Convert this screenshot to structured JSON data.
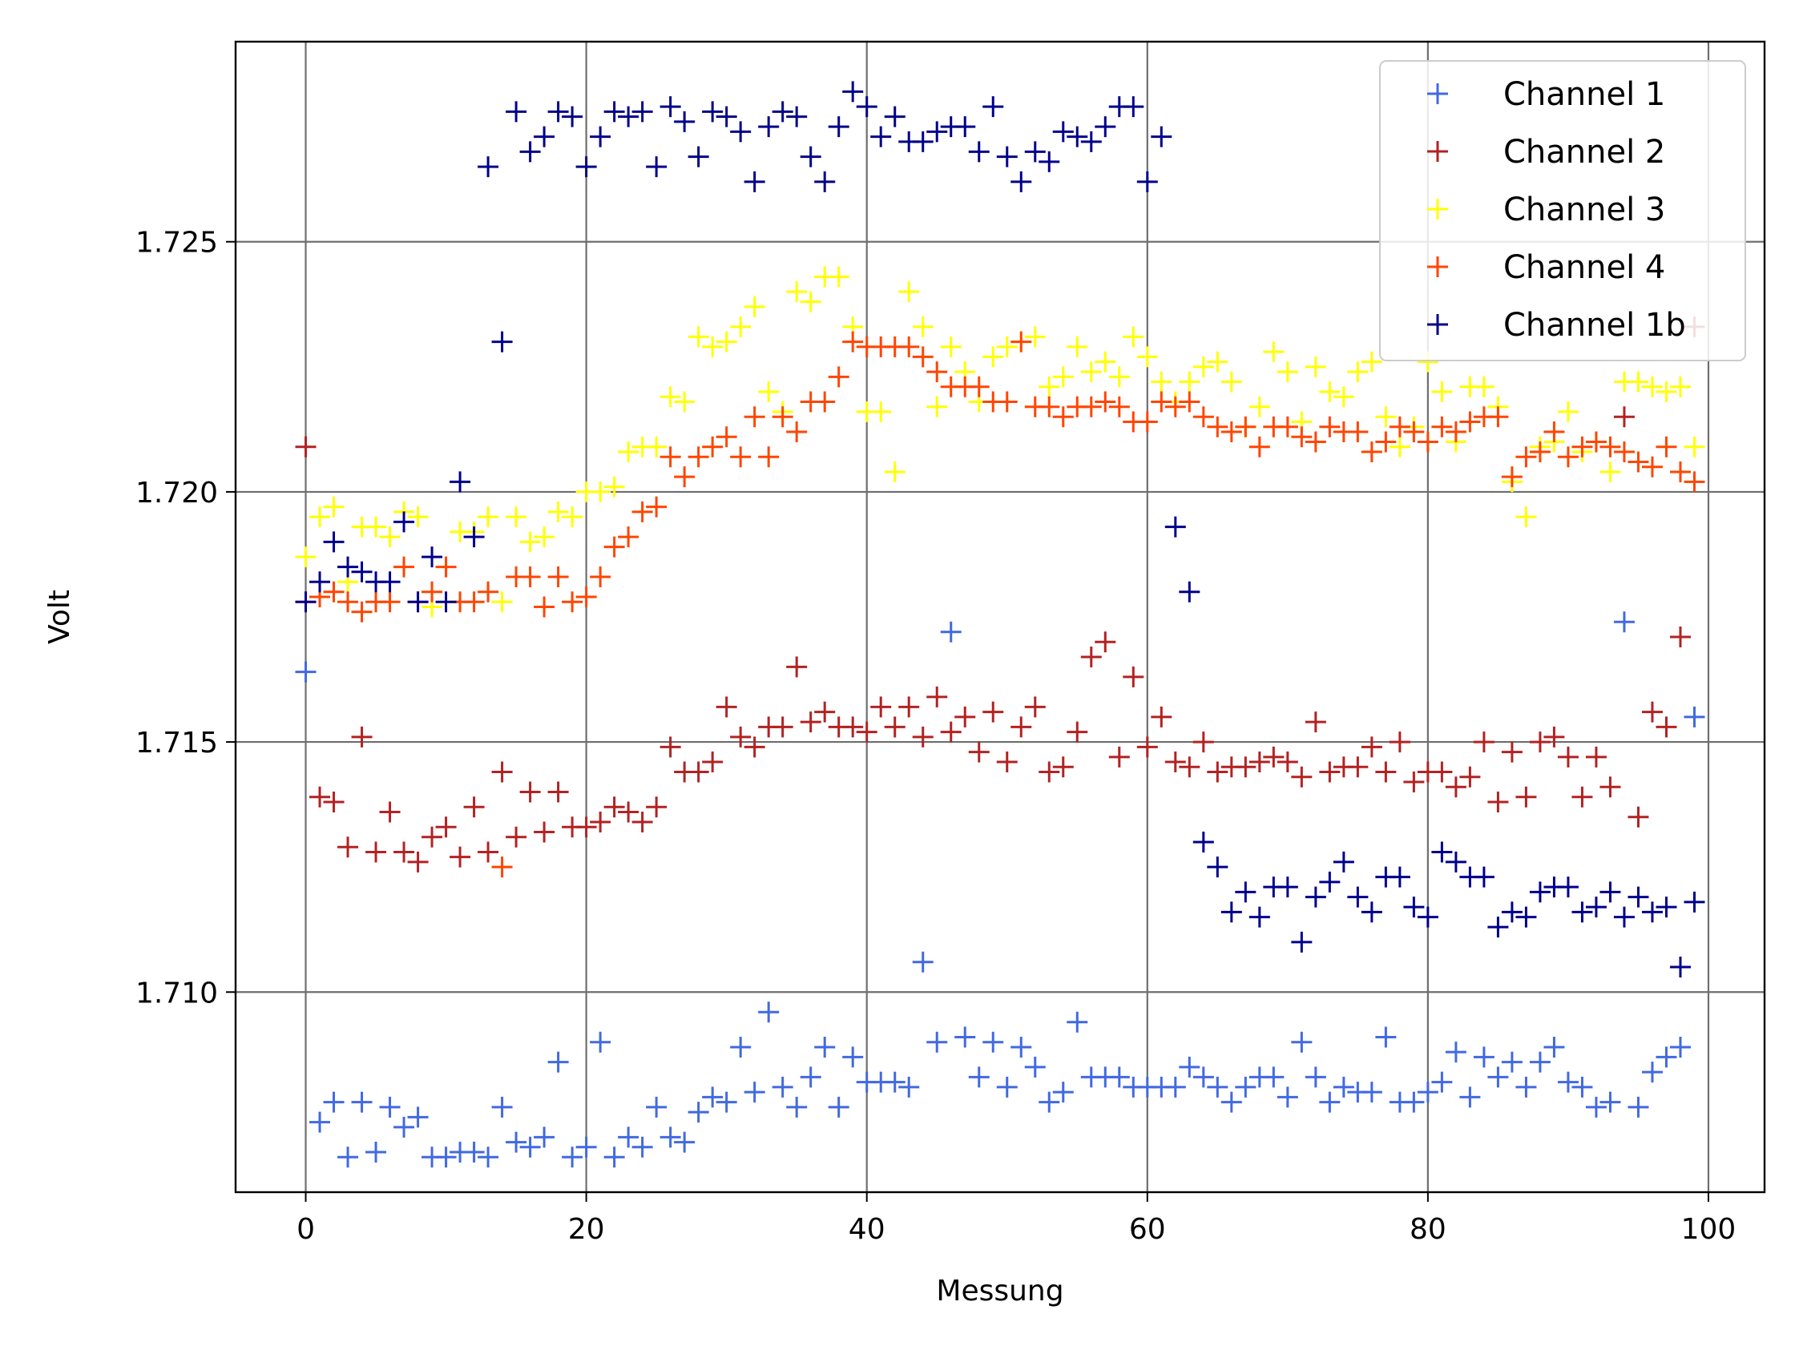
{
  "chart_data": {
    "type": "scatter",
    "marker": "plus",
    "title": "",
    "xlabel": "Messung",
    "ylabel": "Volt",
    "xlim": [
      -5,
      104
    ],
    "ylim": [
      1.706,
      1.729
    ],
    "xticks": [
      0,
      20,
      40,
      60,
      80,
      100
    ],
    "xtick_labels": [
      "0",
      "20",
      "40",
      "60",
      "80",
      "100"
    ],
    "yticks": [
      1.71,
      1.715,
      1.72,
      1.725
    ],
    "ytick_labels": [
      "1.710",
      "1.715",
      "1.720",
      "1.725"
    ],
    "grid": true,
    "legend_position": "top-right",
    "x": [
      0,
      1,
      2,
      3,
      4,
      5,
      6,
      7,
      8,
      9,
      10,
      11,
      12,
      13,
      14,
      15,
      16,
      17,
      18,
      19,
      20,
      21,
      22,
      23,
      24,
      25,
      26,
      27,
      28,
      29,
      30,
      31,
      32,
      33,
      34,
      35,
      36,
      37,
      38,
      39,
      40,
      41,
      42,
      43,
      44,
      45,
      46,
      47,
      48,
      49,
      50,
      51,
      52,
      53,
      54,
      55,
      56,
      57,
      58,
      59,
      60,
      61,
      62,
      63,
      64,
      65,
      66,
      67,
      68,
      69,
      70,
      71,
      72,
      73,
      74,
      75,
      76,
      77,
      78,
      79,
      80,
      81,
      82,
      83,
      84,
      85,
      86,
      87,
      88,
      89,
      90,
      91,
      92,
      93,
      94,
      95,
      96,
      97,
      98,
      99
    ],
    "series": [
      {
        "name": "Channel 1",
        "color": "#4169e1",
        "values": [
          1.7164,
          1.7074,
          1.7078,
          1.7067,
          1.7078,
          1.7068,
          1.7077,
          1.7073,
          1.7075,
          1.7067,
          1.7067,
          1.7068,
          1.7068,
          1.7067,
          1.7077,
          1.707,
          1.7069,
          1.7071,
          1.7086,
          1.7067,
          1.7069,
          1.709,
          1.7067,
          1.7071,
          1.7069,
          1.7077,
          1.7071,
          1.707,
          1.7076,
          1.7079,
          1.7078,
          1.7089,
          1.708,
          1.7096,
          1.7081,
          1.7077,
          1.7083,
          1.7089,
          1.7077,
          1.7087,
          1.7082,
          1.7082,
          1.7082,
          1.7081,
          1.7106,
          1.709,
          1.7172,
          1.7091,
          1.7083,
          1.709,
          1.7081,
          1.7089,
          1.7085,
          1.7078,
          1.708,
          1.7094,
          1.7083,
          1.7083,
          1.7083,
          1.7081,
          1.7081,
          1.7081,
          1.7081,
          1.7085,
          1.7083,
          1.7081,
          1.7078,
          1.7081,
          1.7083,
          1.7083,
          1.7079,
          1.709,
          1.7083,
          1.7078,
          1.7081,
          1.708,
          1.708,
          1.7091,
          1.7078,
          1.7078,
          1.708,
          1.7082,
          1.7088,
          1.7079,
          1.7087,
          1.7083,
          1.7086,
          1.7081,
          1.7086,
          1.7089,
          1.7082,
          1.7081,
          1.7077,
          1.7078,
          1.7174,
          1.7077,
          1.7084,
          1.7087,
          1.7089,
          1.7155
        ]
      },
      {
        "name": "Channel 2",
        "color": "#b22222",
        "values": [
          1.7209,
          1.7139,
          1.7138,
          1.7129,
          1.7151,
          1.7128,
          1.7136,
          1.7128,
          1.7126,
          1.7131,
          1.7133,
          1.7127,
          1.7137,
          1.7128,
          1.7144,
          1.7131,
          1.714,
          1.7132,
          1.714,
          1.7133,
          1.7133,
          1.7134,
          1.7137,
          1.7136,
          1.7134,
          1.7137,
          1.7149,
          1.7144,
          1.7144,
          1.7146,
          1.7157,
          1.7151,
          1.7149,
          1.7153,
          1.7153,
          1.7165,
          1.7154,
          1.7156,
          1.7153,
          1.7153,
          1.7152,
          1.7157,
          1.7153,
          1.7157,
          1.7151,
          1.7159,
          1.7152,
          1.7155,
          1.7148,
          1.7156,
          1.7146,
          1.7153,
          1.7157,
          1.7144,
          1.7145,
          1.7152,
          1.7167,
          1.717,
          1.7147,
          1.7163,
          1.7149,
          1.7155,
          1.7146,
          1.7145,
          1.715,
          1.7144,
          1.7145,
          1.7145,
          1.7146,
          1.7147,
          1.7146,
          1.7143,
          1.7154,
          1.7144,
          1.7145,
          1.7145,
          1.7149,
          1.7144,
          1.715,
          1.7142,
          1.7144,
          1.7144,
          1.7141,
          1.7143,
          1.715,
          1.7138,
          1.7148,
          1.7139,
          1.715,
          1.7151,
          1.7147,
          1.7139,
          1.7147,
          1.7141,
          1.7215,
          1.7135,
          1.7156,
          1.7153,
          1.7171,
          1.7233
        ]
      },
      {
        "name": "Channel 3",
        "color": "#ffff00",
        "values": [
          1.7187,
          1.7195,
          1.7197,
          1.7182,
          1.7193,
          1.7193,
          1.7191,
          1.7196,
          1.7195,
          1.7177,
          1.7178,
          1.7192,
          1.7192,
          1.7195,
          1.7178,
          1.7195,
          1.719,
          1.7191,
          1.7196,
          1.7195,
          1.72,
          1.72,
          1.7201,
          1.7208,
          1.7209,
          1.7209,
          1.7219,
          1.7218,
          1.7231,
          1.7229,
          1.723,
          1.7233,
          1.7237,
          1.722,
          1.7216,
          1.724,
          1.7238,
          1.7243,
          1.7243,
          1.7233,
          1.7216,
          1.7216,
          1.7204,
          1.724,
          1.7233,
          1.7217,
          1.7229,
          1.7224,
          1.7218,
          1.7227,
          1.7229,
          1.723,
          1.7231,
          1.7221,
          1.7223,
          1.7229,
          1.7224,
          1.7226,
          1.7223,
          1.7231,
          1.7227,
          1.7222,
          1.7218,
          1.7222,
          1.7225,
          1.7226,
          1.7222,
          1.7213,
          1.7217,
          1.7228,
          1.7224,
          1.7214,
          1.7225,
          1.722,
          1.7219,
          1.7224,
          1.7226,
          1.7215,
          1.7209,
          1.7213,
          1.7226,
          1.722,
          1.721,
          1.7221,
          1.7221,
          1.7217,
          1.7202,
          1.7195,
          1.7209,
          1.721,
          1.7216,
          1.7208,
          1.721,
          1.7204,
          1.7222,
          1.7222,
          1.7221,
          1.722,
          1.7221,
          1.7209
        ]
      },
      {
        "name": "Channel 4",
        "color": "#ff4500",
        "values": [
          1.7178,
          1.7179,
          1.718,
          1.7178,
          1.7176,
          1.7178,
          1.7178,
          1.7185,
          1.7178,
          1.718,
          1.7185,
          1.7178,
          1.7178,
          1.718,
          1.7125,
          1.7183,
          1.7183,
          1.7177,
          1.7183,
          1.7178,
          1.7179,
          1.7183,
          1.7189,
          1.7191,
          1.7196,
          1.7197,
          1.7207,
          1.7203,
          1.7207,
          1.7209,
          1.7211,
          1.7207,
          1.7215,
          1.7207,
          1.7215,
          1.7212,
          1.7218,
          1.7218,
          1.7223,
          1.723,
          1.7229,
          1.7229,
          1.7229,
          1.7229,
          1.7227,
          1.7224,
          1.7221,
          1.7221,
          1.7221,
          1.7218,
          1.7218,
          1.723,
          1.7217,
          1.7217,
          1.7215,
          1.7217,
          1.7217,
          1.7218,
          1.7217,
          1.7214,
          1.7214,
          1.7218,
          1.7217,
          1.7218,
          1.7215,
          1.7213,
          1.7212,
          1.7213,
          1.7209,
          1.7213,
          1.7213,
          1.7211,
          1.721,
          1.7213,
          1.7212,
          1.7212,
          1.7208,
          1.721,
          1.7213,
          1.7212,
          1.721,
          1.7213,
          1.7212,
          1.7214,
          1.7215,
          1.7215,
          1.7203,
          1.7207,
          1.7208,
          1.7212,
          1.7207,
          1.7209,
          1.721,
          1.7209,
          1.7208,
          1.7206,
          1.7205,
          1.7209,
          1.7204,
          1.7202
        ]
      },
      {
        "name": "Channel 1b",
        "color": "#00008b",
        "values": [
          1.7178,
          1.7182,
          1.719,
          1.7185,
          1.7184,
          1.7182,
          1.7182,
          1.7194,
          1.7178,
          1.7187,
          1.7178,
          1.7202,
          1.7191,
          1.7265,
          1.723,
          1.7276,
          1.7268,
          1.7271,
          1.7276,
          1.7275,
          1.7265,
          1.7271,
          1.7276,
          1.7275,
          1.7276,
          1.7265,
          1.7277,
          1.7274,
          1.7267,
          1.7276,
          1.7275,
          1.7272,
          1.7262,
          1.7273,
          1.7276,
          1.7275,
          1.7267,
          1.7262,
          1.7273,
          1.728,
          1.7277,
          1.7271,
          1.7275,
          1.727,
          1.727,
          1.7272,
          1.7273,
          1.7273,
          1.7268,
          1.7277,
          1.7267,
          1.7262,
          1.7268,
          1.7266,
          1.7272,
          1.7271,
          1.727,
          1.7273,
          1.7277,
          1.7277,
          1.7262,
          1.7271,
          1.7193,
          1.718,
          1.713,
          1.7125,
          1.7116,
          1.712,
          1.7115,
          1.7121,
          1.7121,
          1.711,
          1.7119,
          1.7122,
          1.7126,
          1.7119,
          1.7116,
          1.7123,
          1.7123,
          1.7117,
          1.7115,
          1.7128,
          1.7126,
          1.7123,
          1.7123,
          1.7113,
          1.7116,
          1.7115,
          1.712,
          1.7121,
          1.7121,
          1.7116,
          1.7117,
          1.712,
          1.7115,
          1.7119,
          1.7116,
          1.7117,
          1.7105,
          1.7118
        ]
      }
    ]
  }
}
